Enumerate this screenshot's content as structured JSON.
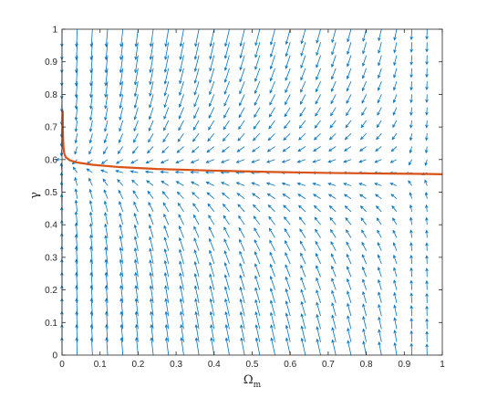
{
  "chart_data": {
    "type": "quiver",
    "title": "",
    "xlabel": "Ω",
    "xlabel_sub": "m",
    "ylabel": "γ",
    "xlim": [
      0,
      1
    ],
    "ylim": [
      0,
      1
    ],
    "x_ticks": [
      "0",
      "0.1",
      "0.2",
      "0.3",
      "0.4",
      "0.5",
      "0.6",
      "0.7",
      "0.8",
      "0.9",
      "1"
    ],
    "y_ticks": [
      "0",
      "0.1",
      "0.2",
      "0.3",
      "0.4",
      "0.5",
      "0.6",
      "0.7",
      "0.8",
      "0.9",
      "1"
    ],
    "grid": false,
    "box": true,
    "colors": {
      "arrows": "#0072BD",
      "trajectory": "#D95319",
      "axes": "#262626"
    },
    "vector_field": {
      "omega_m": {
        "start": 0.0,
        "stop": 0.96,
        "step": 0.04
      },
      "gamma": {
        "start": 0.0,
        "stop": 1.0,
        "step": 0.04
      },
      "attractor_curve": {
        "omega_m": [
          0,
          0.01,
          0.03,
          0.1,
          0.3,
          0.6,
          1.0
        ],
        "gamma": [
          0.6,
          0.595,
          0.585,
          0.575,
          0.566,
          0.558,
          0.554
        ]
      },
      "separatrix_omega_m": 0.955
    },
    "series": [
      {
        "type": "line",
        "x": [
          0.002,
          0.002,
          0.003,
          0.004,
          0.006,
          0.01,
          0.02,
          0.04,
          0.08,
          0.15,
          0.25,
          0.4,
          0.55,
          0.7,
          0.85,
          0.95,
          1.0
        ],
        "y": [
          0.75,
          0.7,
          0.66,
          0.635,
          0.618,
          0.607,
          0.598,
          0.591,
          0.584,
          0.577,
          0.571,
          0.566,
          0.562,
          0.559,
          0.557,
          0.556,
          0.555
        ]
      }
    ]
  }
}
